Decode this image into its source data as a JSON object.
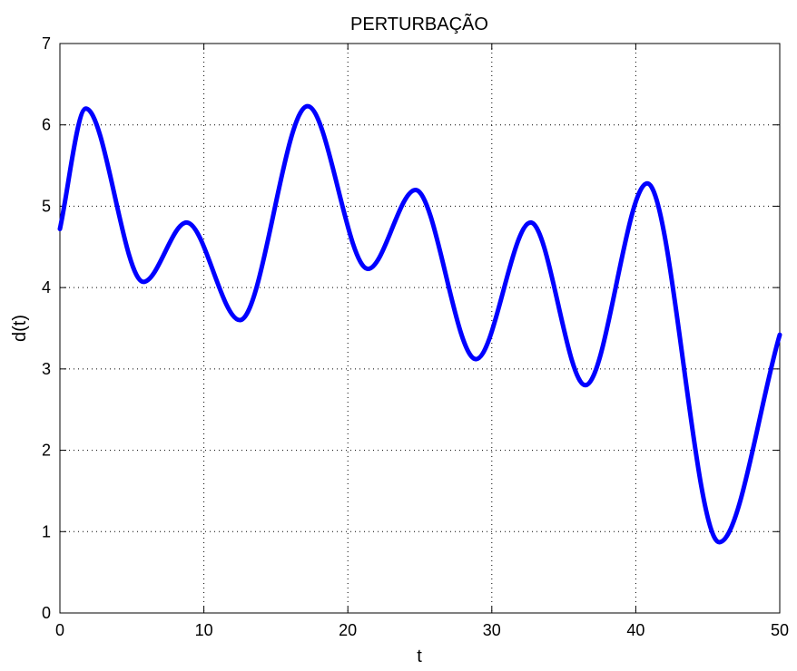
{
  "chart_data": {
    "type": "line",
    "title": "PERTURBAÇÃO",
    "xlabel": "t",
    "ylabel": "d(t)",
    "xlim": [
      0,
      50
    ],
    "ylim": [
      0,
      7
    ],
    "xticks": [
      "0",
      "10",
      "20",
      "30",
      "40",
      "50"
    ],
    "yticks": [
      "0",
      "1",
      "2",
      "3",
      "4",
      "5",
      "6",
      "7"
    ],
    "grid": true,
    "line_color": "#0000ff",
    "series": [
      {
        "x": [
          0,
          1.8,
          5.8,
          8.8,
          12.5,
          17.2,
          21.4,
          24.7,
          28.9,
          32.7,
          36.5,
          40.8,
          45.8,
          50
        ],
        "values": [
          4.72,
          6.2,
          4.07,
          4.8,
          3.6,
          6.23,
          4.23,
          5.2,
          3.12,
          4.8,
          2.8,
          5.28,
          0.87,
          3.42
        ]
      }
    ]
  }
}
